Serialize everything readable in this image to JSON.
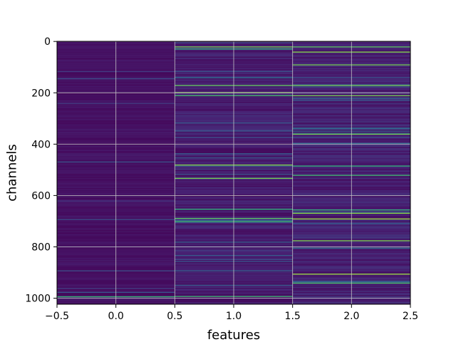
{
  "chart_data": {
    "type": "heatmap",
    "title": "",
    "xlabel": "features",
    "ylabel": "channels",
    "xlim": [
      -0.5,
      2.5
    ],
    "ylim": [
      1023.5,
      -0.5
    ],
    "y_inverted": true,
    "grid": true,
    "colormap": "viridis",
    "x_ticks": [
      -0.5,
      0.0,
      0.5,
      1.0,
      1.5,
      2.0,
      2.5
    ],
    "x_tick_labels": [
      "−0.5",
      "0.0",
      "0.5",
      "1.0",
      "1.5",
      "2.0",
      "2.5"
    ],
    "y_ticks": [
      0,
      200,
      400,
      600,
      800,
      1000
    ],
    "y_tick_labels": [
      "0",
      "200",
      "400",
      "600",
      "800",
      "1000"
    ],
    "n_rows": 1024,
    "columns": [
      {
        "feature": 0,
        "base_level": 0.06,
        "highlight_rows": [
          993
        ]
      },
      {
        "feature": 1,
        "base_level": 0.1,
        "highlight_rows": [
          20,
          28,
          170,
          198,
          210,
          480,
          532,
          652,
          688,
          700,
          992
        ]
      },
      {
        "feature": 2,
        "base_level": 0.12,
        "highlight_rows": [
          20,
          40,
          90,
          170,
          210,
          360,
          484,
          520,
          655,
          668,
          690,
          775,
          905,
          940
        ]
      }
    ]
  }
}
